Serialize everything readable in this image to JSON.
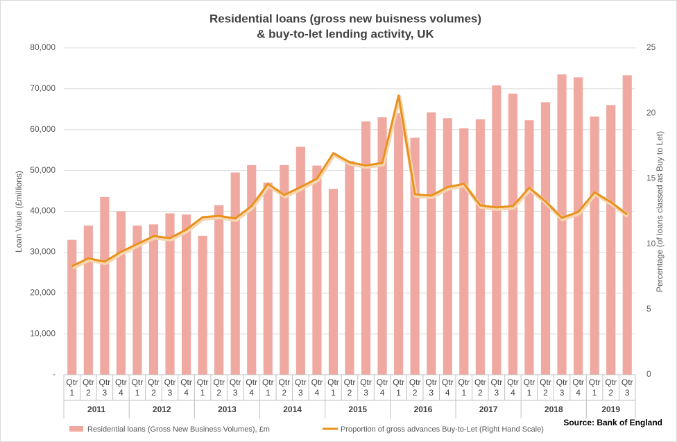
{
  "chart_data": {
    "type": "bar",
    "title": [
      "Residential loans (gross new buisness volumes)",
      "& buy-to-let lending activity, UK"
    ],
    "y_label": "Loan Value  (£millions)",
    "y2_label": "Percentage  (of loans classed as Buy to Let)",
    "source": "Source: Bank of England",
    "categories": [
      "Qtr 1",
      "Qtr 2",
      "Qtr 3",
      "Qtr 4",
      "Qtr 1",
      "Qtr 2",
      "Qtr 3",
      "Qtr 4",
      "Qtr 1",
      "Qtr 2",
      "Qtr 3",
      "Qtr 4",
      "Qtr 1",
      "Qtr 2",
      "Qtr 3",
      "Qtr 4",
      "Qtr 1",
      "Qtr 2",
      "Qtr 3",
      "Qtr 4",
      "Qtr 1",
      "Qtr 2",
      "Qtr 3",
      "Qtr 4",
      "Qtr 1",
      "Qtr 2",
      "Qtr 3",
      "Qtr 4",
      "Qtr 1",
      "Qtr 2",
      "Qtr 3",
      "Qtr 4",
      "Qtr 1",
      "Qtr 2",
      "Qtr 3"
    ],
    "groups": [
      "2011",
      "2012",
      "2013",
      "2014",
      "2015",
      "2016",
      "2017",
      "2018",
      "2019"
    ],
    "series": [
      {
        "name": "Residential loans (Gross New Business Volumes), £m",
        "type": "bar",
        "axis": "y",
        "color": "#f0a9a1",
        "values": [
          33000,
          36500,
          43500,
          40000,
          36500,
          36800,
          39500,
          39200,
          34000,
          41500,
          49500,
          51300,
          47000,
          51300,
          55800,
          51200,
          45500,
          52300,
          62000,
          63000,
          64000,
          58000,
          64200,
          62800,
          60300,
          62500,
          70800,
          68800,
          62300,
          66700,
          73500,
          72800,
          63200,
          66000,
          73300
        ]
      },
      {
        "name": "Proportion of gross advances Buy-to-Let (Right Hand Scale)",
        "type": "line",
        "axis": "y2",
        "color": "#e8921c",
        "values": [
          8.3,
          8.9,
          8.65,
          9.4,
          10.0,
          10.6,
          10.45,
          11.1,
          12.05,
          12.15,
          11.95,
          12.9,
          14.6,
          13.75,
          14.35,
          15.0,
          16.95,
          16.25,
          16.0,
          16.2,
          21.35,
          13.8,
          13.7,
          14.35,
          14.6,
          12.95,
          12.8,
          12.9,
          14.3,
          13.25,
          12.0,
          12.45,
          13.95,
          13.2,
          12.25
        ]
      }
    ],
    "ylim": [
      0,
      80000
    ],
    "yticks": [
      {
        "value": 0,
        "label": "-"
      },
      {
        "value": 10000,
        "label": "10,000"
      },
      {
        "value": 20000,
        "label": "20,000"
      },
      {
        "value": 30000,
        "label": "30,000"
      },
      {
        "value": 40000,
        "label": "40,000"
      },
      {
        "value": 50000,
        "label": "50,000"
      },
      {
        "value": 60000,
        "label": "60,000"
      },
      {
        "value": 70000,
        "label": "70,000"
      },
      {
        "value": 80000,
        "label": "80,000"
      }
    ],
    "y2lim": [
      0,
      25
    ],
    "y2ticks": [
      0,
      5,
      10,
      15,
      20,
      25
    ],
    "grid": true
  }
}
